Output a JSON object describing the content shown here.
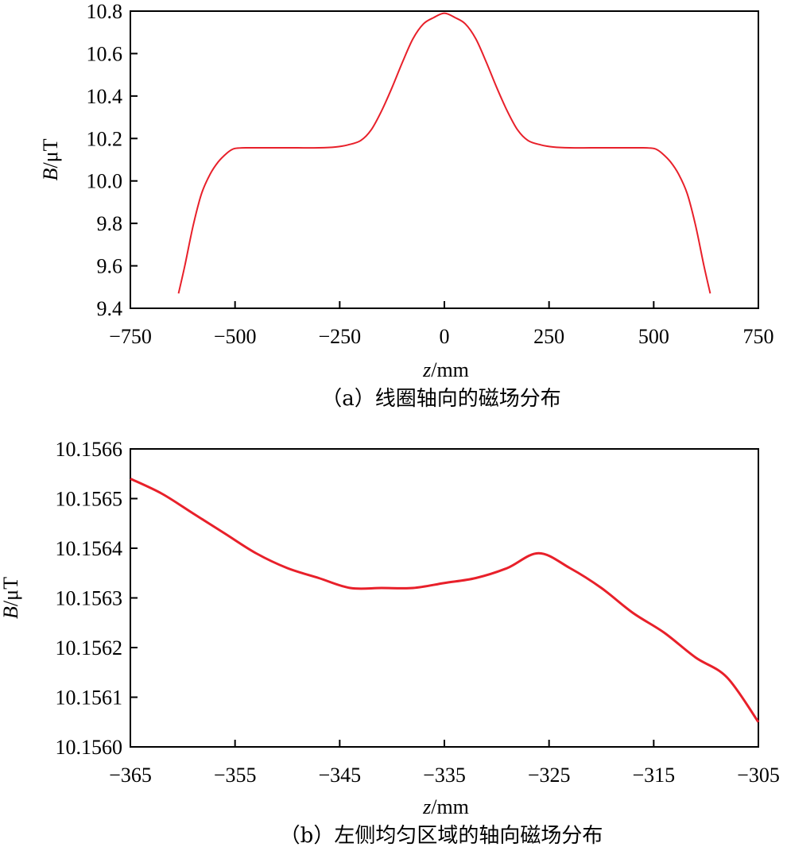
{
  "chart_data": [
    {
      "type": "line",
      "caption": "（a）线圈轴向的磁场分布",
      "xlabel_var": "z",
      "xlabel_unit": "/mm",
      "ylabel_var": "B",
      "ylabel_unit": "/μT",
      "xlim": [
        -750,
        750
      ],
      "ylim": [
        9.4,
        10.8
      ],
      "xticks": [
        -750,
        -500,
        -250,
        0,
        250,
        500,
        750
      ],
      "xtick_labels": [
        "−750",
        "−500",
        "−250",
        "0",
        "250",
        "500",
        "750"
      ],
      "yticks": [
        9.4,
        9.6,
        9.8,
        10.0,
        10.2,
        10.4,
        10.6,
        10.8
      ],
      "ytick_labels": [
        "9.4",
        "9.6",
        "9.8",
        "10.0",
        "10.2",
        "10.4",
        "10.6",
        "10.8"
      ],
      "grid": false,
      "color": "#e8202a",
      "series": [
        {
          "x": [
            -635,
            -620,
            -600,
            -580,
            -560,
            -540,
            -520,
            -505,
            -490,
            -470,
            -450,
            -400,
            -350,
            -300,
            -260,
            -230,
            -200,
            -175,
            -150,
            -125,
            -100,
            -75,
            -50,
            -25,
            0,
            25,
            50,
            75,
            100,
            125,
            150,
            175,
            200,
            230,
            260,
            300,
            350,
            400,
            450,
            470,
            490,
            505,
            520,
            540,
            560,
            580,
            600,
            620,
            635
          ],
          "y": [
            9.47,
            9.6,
            9.79,
            9.94,
            10.03,
            10.09,
            10.13,
            10.15,
            10.155,
            10.156,
            10.156,
            10.156,
            10.156,
            10.156,
            10.16,
            10.17,
            10.19,
            10.24,
            10.33,
            10.44,
            10.56,
            10.67,
            10.74,
            10.77,
            10.79,
            10.77,
            10.74,
            10.67,
            10.56,
            10.44,
            10.33,
            10.24,
            10.19,
            10.17,
            10.16,
            10.156,
            10.156,
            10.156,
            10.156,
            10.156,
            10.155,
            10.15,
            10.13,
            10.09,
            10.03,
            9.94,
            9.79,
            9.6,
            9.47
          ]
        }
      ]
    },
    {
      "type": "line",
      "caption": "（b）左侧均匀区域的轴向磁场分布",
      "xlabel_var": "z",
      "xlabel_unit": "/mm",
      "ylabel_var": "B",
      "ylabel_unit": "/μT",
      "xlim": [
        -365,
        -305
      ],
      "ylim": [
        10.156,
        10.1566
      ],
      "xticks": [
        -365,
        -355,
        -345,
        -335,
        -325,
        -315,
        -305
      ],
      "xtick_labels": [
        "−365",
        "−355",
        "−345",
        "−335",
        "−325",
        "−315",
        "−305"
      ],
      "yticks": [
        10.156,
        10.1561,
        10.1562,
        10.1563,
        10.1564,
        10.1565,
        10.1566
      ],
      "ytick_labels": [
        "10.1560",
        "10.1561",
        "10.1562",
        "10.1563",
        "10.1564",
        "10.1565",
        "10.1566"
      ],
      "grid": false,
      "color": "#e8202a",
      "series": [
        {
          "x": [
            -365,
            -362,
            -359,
            -356,
            -353,
            -350,
            -347,
            -344,
            -341,
            -338,
            -335,
            -332,
            -329,
            -326,
            -323,
            -320,
            -317,
            -314,
            -311,
            -308,
            -305
          ],
          "y": [
            10.15654,
            10.15651,
            10.15647,
            10.15643,
            10.15639,
            10.15636,
            10.15634,
            10.15632,
            10.15632,
            10.15632,
            10.15633,
            10.15634,
            10.15636,
            10.15639,
            10.15636,
            10.15632,
            10.15627,
            10.15623,
            10.15618,
            10.15614,
            10.15605
          ]
        }
      ]
    }
  ]
}
